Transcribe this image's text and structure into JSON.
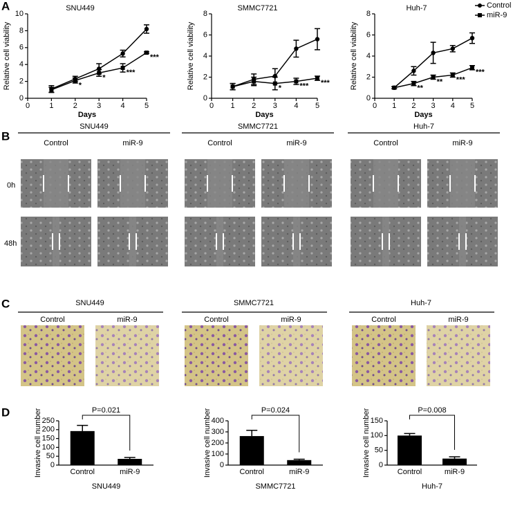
{
  "panel_labels": [
    "A",
    "B",
    "C",
    "D"
  ],
  "chart_data": [
    {
      "type": "line",
      "title": "SNU449",
      "x": [
        1,
        2,
        3,
        4,
        5
      ],
      "xlim": [
        0,
        5
      ],
      "xticks": [
        0,
        1,
        2,
        3,
        4,
        5
      ],
      "ylim": [
        0,
        10
      ],
      "yticks": [
        0,
        2,
        4,
        6,
        8,
        10
      ],
      "xlabel": "Days",
      "ylabel": "Relative cell viability",
      "series": [
        {
          "color": "#000000",
          "marker": "circle",
          "values": [
            1.1,
            2.3,
            3.5,
            5.3,
            8.2
          ],
          "errors": [
            0.4,
            0.3,
            0.6,
            0.4,
            0.5
          ]
        },
        {
          "color": "#000000",
          "marker": "square",
          "values": [
            1.0,
            2.1,
            3.0,
            3.6,
            5.4
          ],
          "errors": [
            0.3,
            0.3,
            0.4,
            0.5,
            0.1
          ]
        }
      ],
      "annotations": [
        {
          "x": 2,
          "text": "*"
        },
        {
          "x": 3,
          "text": "*"
        },
        {
          "x": 4,
          "text": "***"
        },
        {
          "x": 5,
          "text": "***"
        }
      ]
    },
    {
      "type": "line",
      "title": "SMMC7721",
      "x": [
        1,
        2,
        3,
        4,
        5
      ],
      "xlim": [
        0,
        5
      ],
      "xticks": [
        0,
        1,
        2,
        3,
        4,
        5
      ],
      "ylim": [
        0,
        8
      ],
      "yticks": [
        0,
        2,
        4,
        6,
        8
      ],
      "xlabel": "Days",
      "ylabel": "Relative cell viability",
      "series": [
        {
          "color": "#000000",
          "marker": "circle",
          "values": [
            1.1,
            1.8,
            2.1,
            4.7,
            5.6
          ],
          "errors": [
            0.3,
            0.5,
            0.7,
            0.8,
            1.0
          ]
        },
        {
          "color": "#000000",
          "marker": "square",
          "values": [
            1.1,
            1.6,
            1.4,
            1.6,
            1.9
          ],
          "errors": [
            0.3,
            0.4,
            0.6,
            0.3,
            0.2
          ]
        }
      ],
      "annotations": [
        {
          "x": 3,
          "text": "*"
        },
        {
          "x": 4,
          "text": "***"
        },
        {
          "x": 5,
          "text": "***"
        }
      ]
    },
    {
      "type": "line",
      "title": "Huh-7",
      "x": [
        1,
        2,
        3,
        4,
        5
      ],
      "xlim": [
        0,
        5
      ],
      "xticks": [
        0,
        1,
        2,
        3,
        4,
        5
      ],
      "ylim": [
        0,
        8
      ],
      "yticks": [
        0,
        2,
        4,
        6,
        8
      ],
      "xlabel": "Days",
      "ylabel": "Relative cell viability",
      "legend": "upper right",
      "series": [
        {
          "name": "Control",
          "color": "#000000",
          "marker": "circle",
          "values": [
            1.0,
            2.6,
            4.3,
            4.7,
            5.7
          ],
          "errors": [
            0.1,
            0.4,
            1.0,
            0.3,
            0.5
          ]
        },
        {
          "name": "miR-9",
          "color": "#000000",
          "marker": "square",
          "values": [
            1.0,
            1.4,
            2.0,
            2.2,
            2.9
          ],
          "errors": [
            0.1,
            0.2,
            0.2,
            0.2,
            0.2
          ]
        }
      ],
      "annotations": [
        {
          "x": 2,
          "text": "**"
        },
        {
          "x": 3,
          "text": "**"
        },
        {
          "x": 4,
          "text": "***"
        },
        {
          "x": 5,
          "text": "***"
        }
      ]
    },
    {
      "type": "bar",
      "categories": [
        "Control",
        "miR-9"
      ],
      "values": [
        192,
        35
      ],
      "errors": [
        32,
        8
      ],
      "color": "#000000",
      "ylim": [
        0,
        250
      ],
      "yticks": [
        0,
        50,
        100,
        150,
        200,
        250
      ],
      "ylabel": "Invasive cell number",
      "xlabel": "SNU449",
      "annotation": "P=0.021"
    },
    {
      "type": "bar",
      "categories": [
        "Control",
        "miR-9"
      ],
      "values": [
        262,
        45
      ],
      "errors": [
        52,
        8
      ],
      "color": "#000000",
      "ylim": [
        0,
        400
      ],
      "yticks": [
        0,
        100,
        200,
        300,
        400
      ],
      "ylabel": "Invasive cell number",
      "xlabel": "SMMC7721",
      "annotation": "P=0.024"
    },
    {
      "type": "bar",
      "categories": [
        "Control",
        "miR-9"
      ],
      "values": [
        100,
        22
      ],
      "errors": [
        7,
        6
      ],
      "color": "#000000",
      "ylim": [
        0,
        150
      ],
      "yticks": [
        0,
        50,
        100,
        150
      ],
      "ylabel": "Invasive cell number",
      "xlabel": "Huh-7",
      "annotation": "P=0.008"
    }
  ],
  "migration": {
    "cell_lines": [
      "SNU449",
      "SMMC7721",
      "Huh-7"
    ],
    "conditions": [
      "Control",
      "miR-9"
    ],
    "timepoints": [
      "0h",
      "48h"
    ]
  },
  "invasion": {
    "cell_lines": [
      "SNU449",
      "SMMC7721",
      "Huh-7"
    ],
    "conditions": [
      "Control",
      "miR-9"
    ]
  }
}
